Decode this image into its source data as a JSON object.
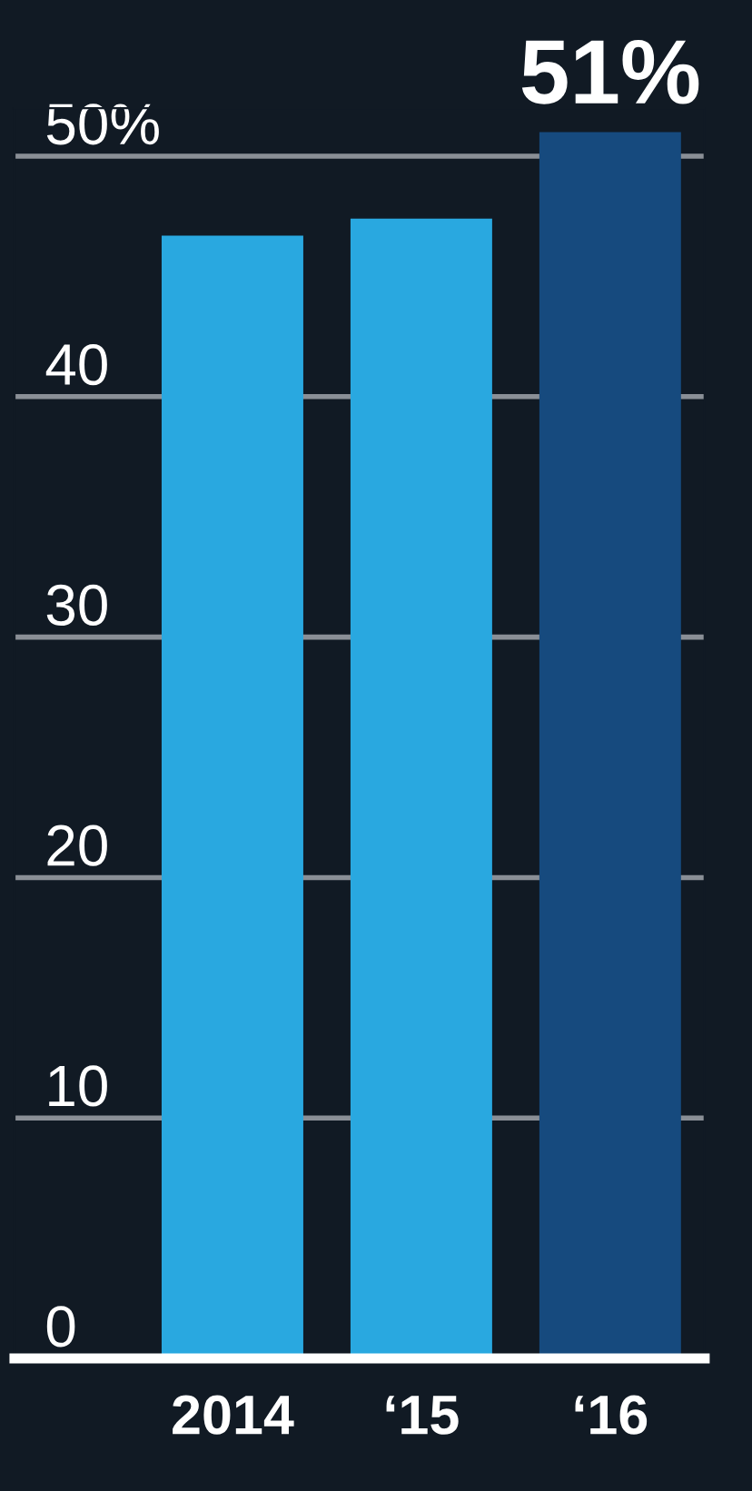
{
  "chart_data": {
    "type": "bar",
    "categories": [
      "2014",
      "‘15",
      "‘16"
    ],
    "values": [
      46.7,
      47.4,
      51
    ],
    "colors": [
      "#29a8e0",
      "#29a8e0",
      "#164a7e"
    ],
    "value_labels": [
      null,
      null,
      "51%"
    ],
    "ylim": [
      0,
      52
    ],
    "yticks": [
      0,
      10,
      20,
      30,
      40,
      {
        "value": 50,
        "label": "50%"
      }
    ],
    "grid": "y"
  }
}
